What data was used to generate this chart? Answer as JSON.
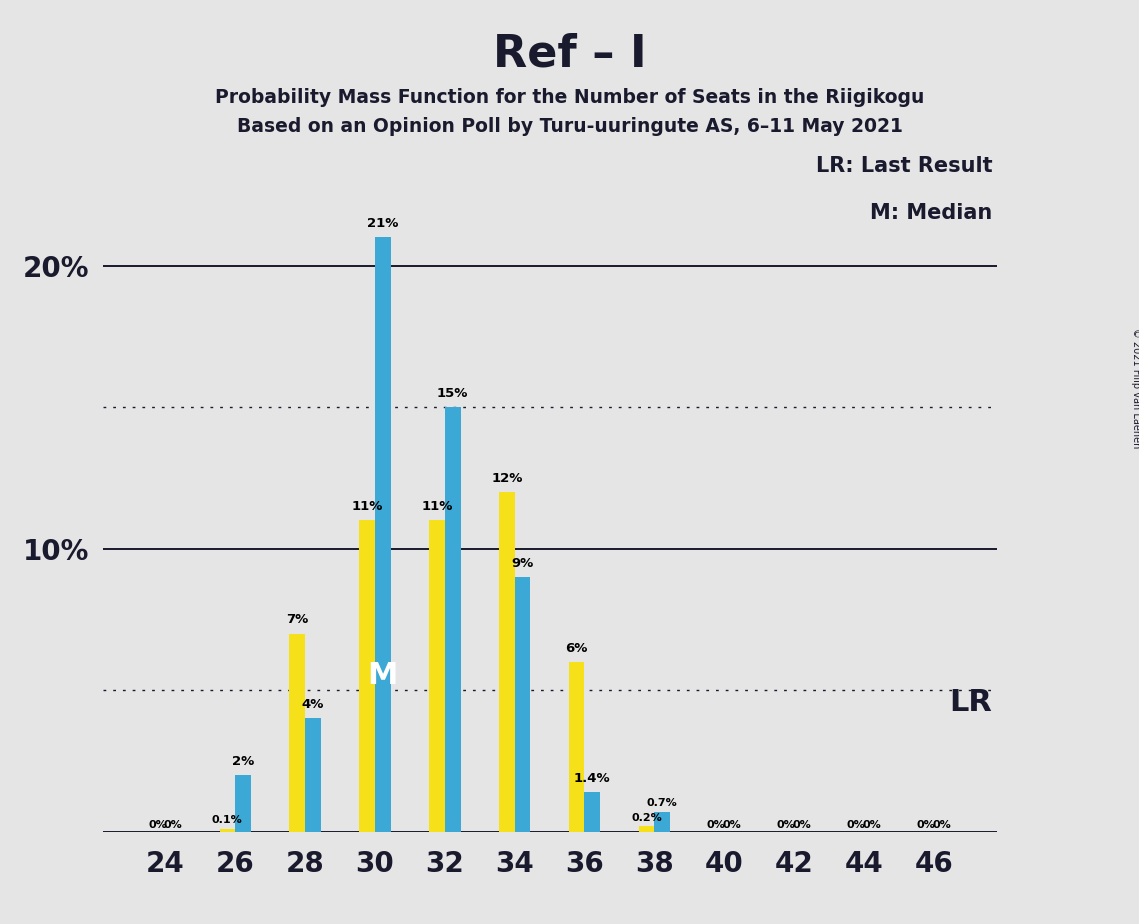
{
  "title": "Ref – I",
  "subtitle1": "Probability Mass Function for the Number of Seats in the Riigikogu",
  "subtitle2": "Based on an Opinion Poll by Turu-uuringute AS, 6–11 May 2021",
  "copyright": "© 2021 Filip van Laenen",
  "legend_lr": "LR: Last Result",
  "legend_m": "M: Median",
  "lr_label": "LR",
  "median_label": "M",
  "x_seats": [
    24,
    26,
    28,
    30,
    32,
    34,
    36,
    38,
    40,
    42,
    44,
    46
  ],
  "yellow_values": [
    0.0,
    0.1,
    7.0,
    11.0,
    11.0,
    12.0,
    6.0,
    0.2,
    0.0,
    0.0,
    0.0,
    0.0
  ],
  "blue_values": [
    0.0,
    2.0,
    4.0,
    21.0,
    15.0,
    9.0,
    1.4,
    0.7,
    0.0,
    0.0,
    0.0,
    0.0
  ],
  "yellow_labels": [
    "0%",
    "0.1%",
    "7%",
    "11%",
    "11%",
    "12%",
    "6%",
    "0.2%",
    "0%",
    "0%",
    "0%",
    "0%"
  ],
  "blue_labels": [
    "0%",
    "2%",
    "4%",
    "21%",
    "15%",
    "9%",
    "1.4%",
    "0.7%",
    "0%",
    "0%",
    "0%",
    "0%"
  ],
  "blue_color": "#3ba8d5",
  "yellow_color": "#f5e01a",
  "background_color": "#e5e5e5",
  "solid_gridlines": [
    10,
    20
  ],
  "dotted_gridlines": [
    5,
    15
  ],
  "ylim": [
    0,
    24
  ],
  "bar_width": 0.9,
  "xlim_min": 22.2,
  "xlim_max": 47.8
}
